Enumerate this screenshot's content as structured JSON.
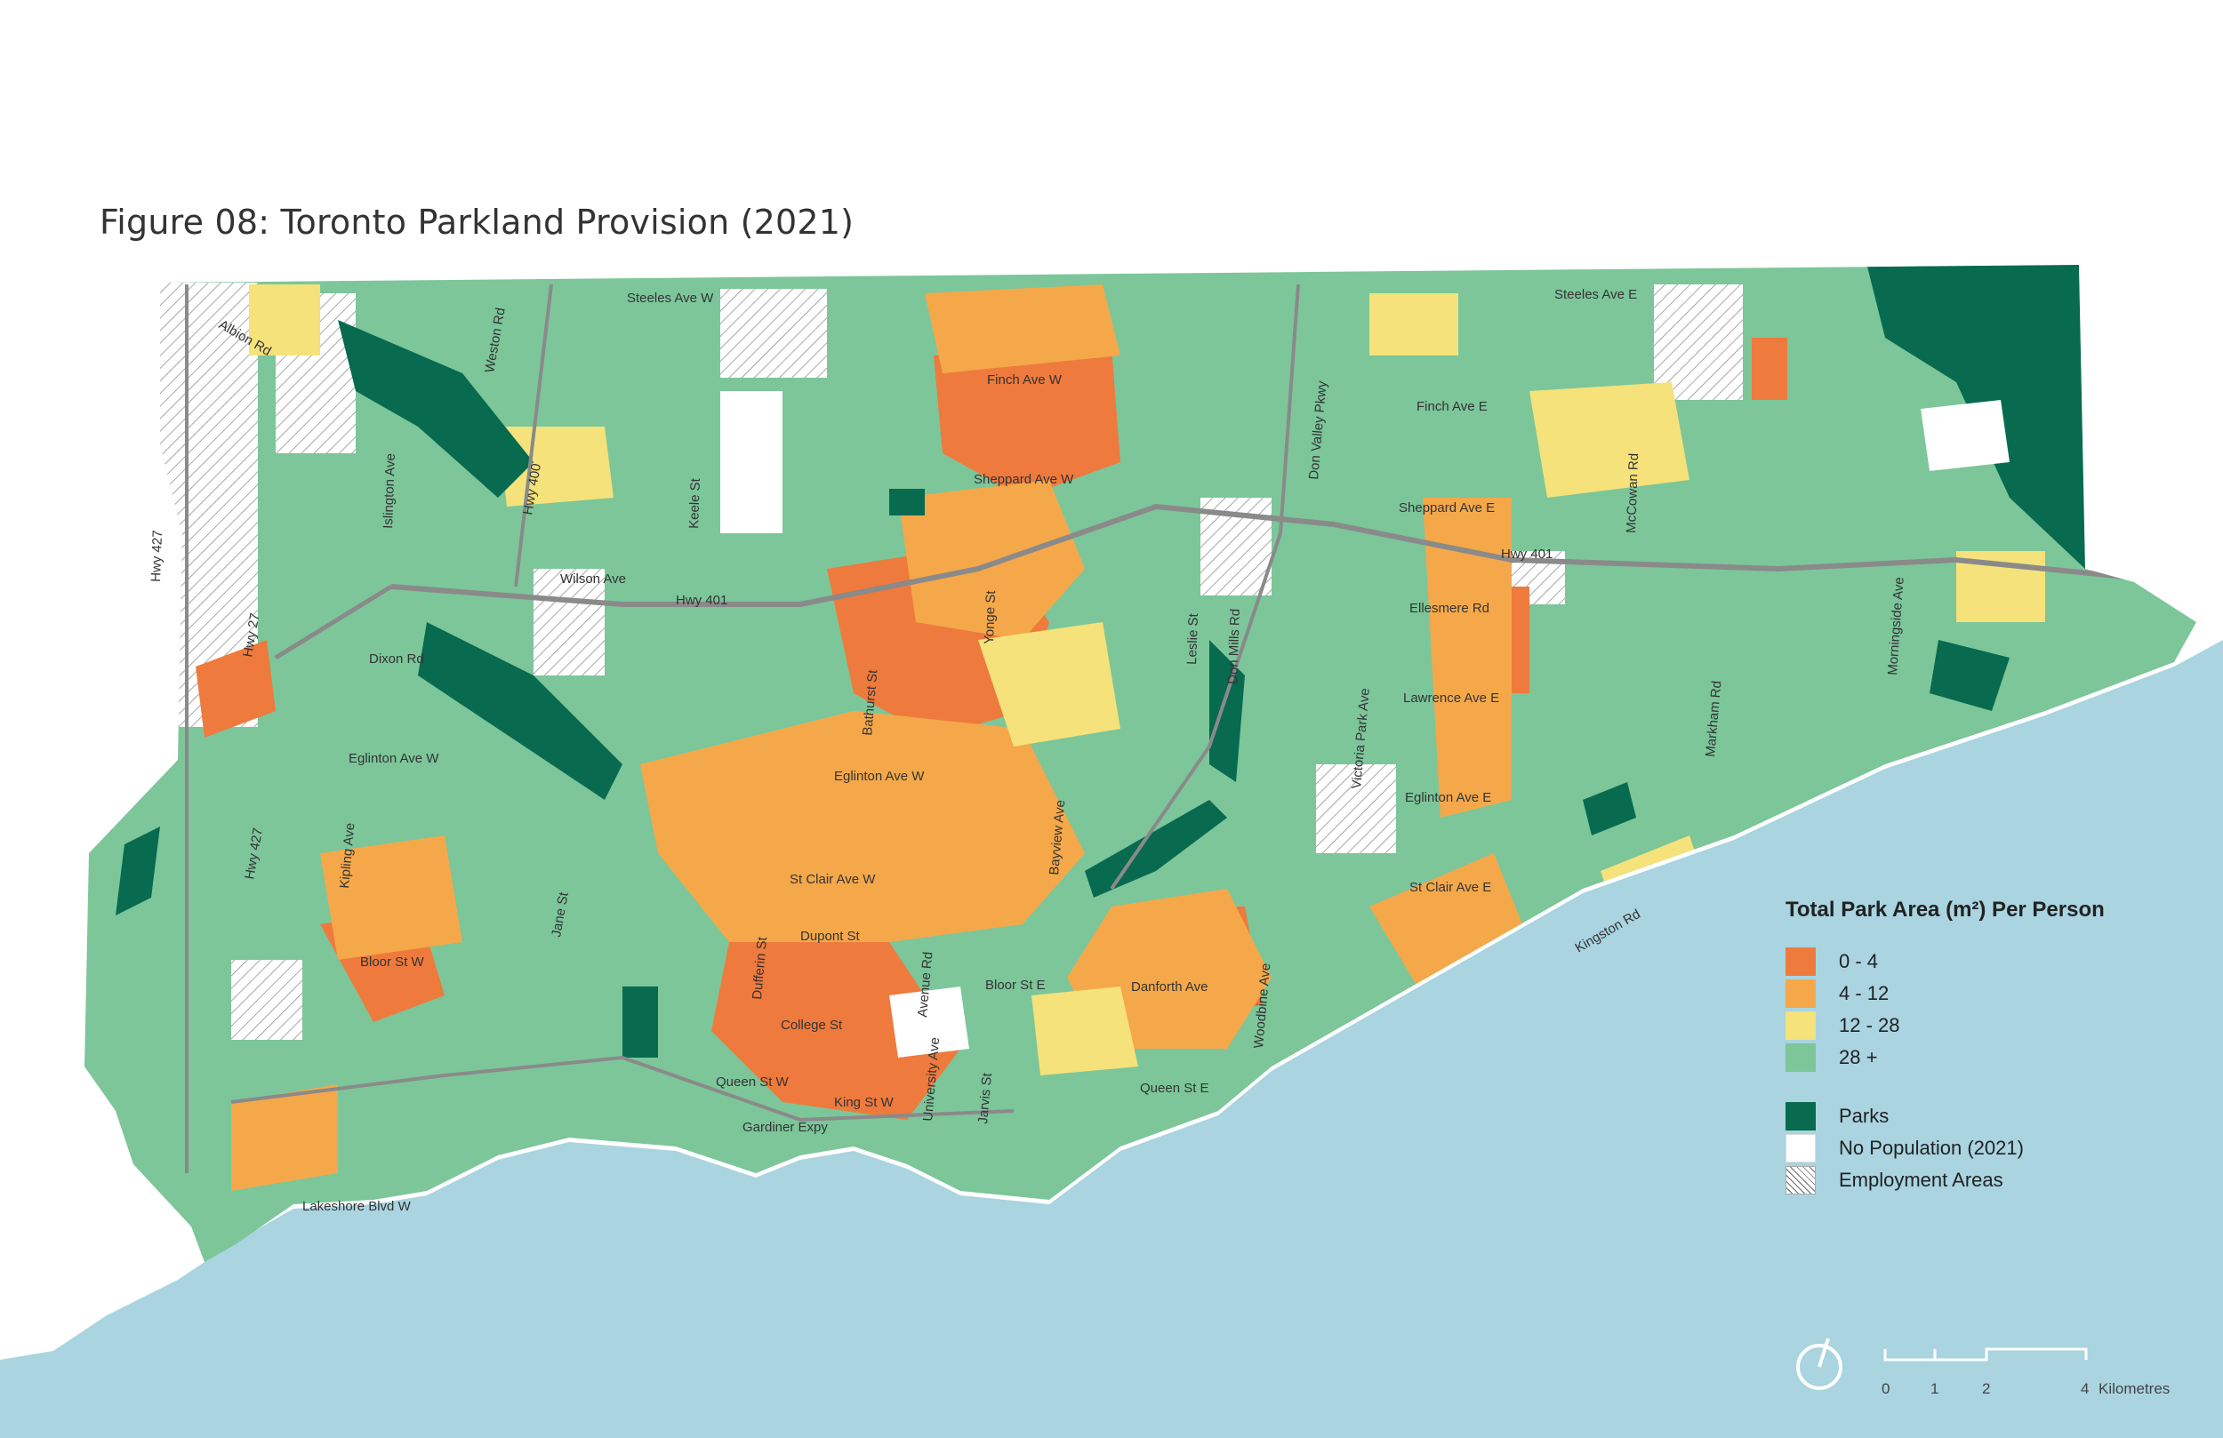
{
  "title": "Figure 08: Toronto Parkland Provision (2021)",
  "colors": {
    "water": "#a9d4e0",
    "bin_0_4": "#ef7a3d",
    "bin_4_12": "#f5a84a",
    "bin_12_28": "#f5e27a",
    "bin_28_plus": "#7cc69a",
    "parks": "#086a4f",
    "no_population": "#ffffff",
    "road": "#8a8a8a"
  },
  "legend": {
    "title": "Total Park Area (m²) Per Person",
    "items": [
      {
        "label": "0 - 4",
        "color": "#ef7a3d"
      },
      {
        "label": "4 - 12",
        "color": "#f5a84a"
      },
      {
        "label": "12 - 28",
        "color": "#f5e27a"
      },
      {
        "label": "28 +",
        "color": "#7cc69a"
      }
    ],
    "other": [
      {
        "label": "Parks",
        "color": "#086a4f"
      },
      {
        "label": "No Population (2021)",
        "color": "#ffffff"
      },
      {
        "label": "Employment  Areas",
        "pattern": "hatch"
      }
    ]
  },
  "scale_bar": {
    "ticks": [
      "0",
      "1",
      "2",
      "4"
    ],
    "unit": "Kilometres"
  },
  "road_labels": {
    "steeles_w": "Steeles Ave W",
    "steeles_e": "Steeles Ave E",
    "albion": "Albion Rd",
    "weston": "Weston Rd",
    "finch_w": "Finch Ave W",
    "finch_e": "Finch Ave E",
    "dvp": "Don Valley Pkwy",
    "mccowan": "McCowan Rd",
    "islington": "Islington Ave",
    "hwy400": "Hwy 400",
    "keele": "Keele St",
    "sheppard_w": "Sheppard Ave W",
    "sheppard_e": "Sheppard Ave E",
    "hwy427a": "Hwy 427",
    "hwy27": "Hwy 27",
    "wilson": "Wilson Ave",
    "hwy401a": "Hwy 401",
    "hwy401b": "Hwy 401",
    "ellesmere": "Ellesmere Rd",
    "morningside": "Morningside Ave",
    "dixon": "Dixon Rd",
    "yonge": "Yonge St",
    "leslie": "Leslie St",
    "donmills": "Don Mills Rd",
    "bathurst": "Bathurst St",
    "lawrence_e": "Lawrence Ave E",
    "markham": "Markham Rd",
    "victoriapark": "Victoria Park Ave",
    "eglinton_w1": "Eglinton Ave W",
    "eglinton_w2": "Eglinton Ave W",
    "eglinton_e": "Eglinton Ave E",
    "bayview": "Bayview Ave",
    "hwy427b": "Hwy 427",
    "kipling": "Kipling Ave",
    "stclair_w": "St Clair Ave W",
    "stclair_e": "St Clair Ave E",
    "jane": "Jane St",
    "dufferin": "Dufferin St",
    "dupont": "Dupont St",
    "avenue": "Avenue Rd",
    "kingston": "Kingston Rd",
    "bloor_w": "Bloor St W",
    "bloor_e": "Bloor St E",
    "danforth": "Danforth Ave",
    "woodbine": "Woodbine Ave",
    "college": "College St",
    "university": "University Ave",
    "queen_w": "Queen St W",
    "king": "King St W",
    "jarvis": "Jarvis St",
    "queen_e": "Queen St E",
    "gardiner": "Gardiner Expy",
    "lakeshore": "Lakeshore Blvd W"
  }
}
